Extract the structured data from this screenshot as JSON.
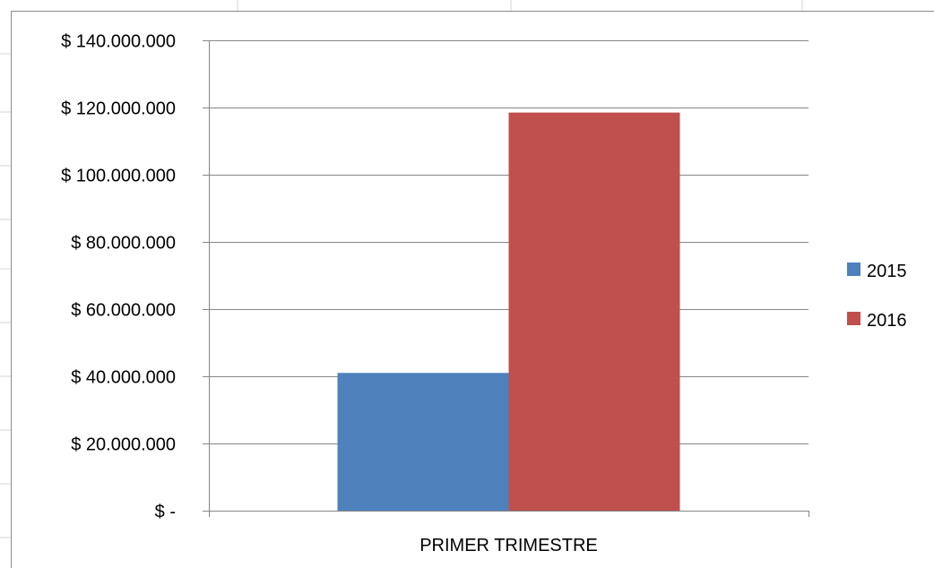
{
  "chart_data": {
    "type": "bar",
    "categories": [
      "PRIMER TRIMESTRE"
    ],
    "series": [
      {
        "name": "2015",
        "values": [
          41000000
        ],
        "color": "#4f81bd"
      },
      {
        "name": "2016",
        "values": [
          118500000
        ],
        "color": "#c0504d"
      }
    ],
    "ylim": [
      0,
      140000000
    ],
    "ytick_values": [
      0,
      20000000,
      40000000,
      60000000,
      80000000,
      100000000,
      120000000,
      140000000
    ],
    "ytick_labels": [
      "$ -",
      "$ 20.000.000",
      "$ 40.000.000",
      "$ 60.000.000",
      "$ 80.000.000",
      "$ 100.000.000",
      "$ 120.000.000",
      "$ 140.000.000"
    ],
    "grid": true,
    "legend_position": "right",
    "title": "",
    "xlabel": "",
    "ylabel": ""
  }
}
